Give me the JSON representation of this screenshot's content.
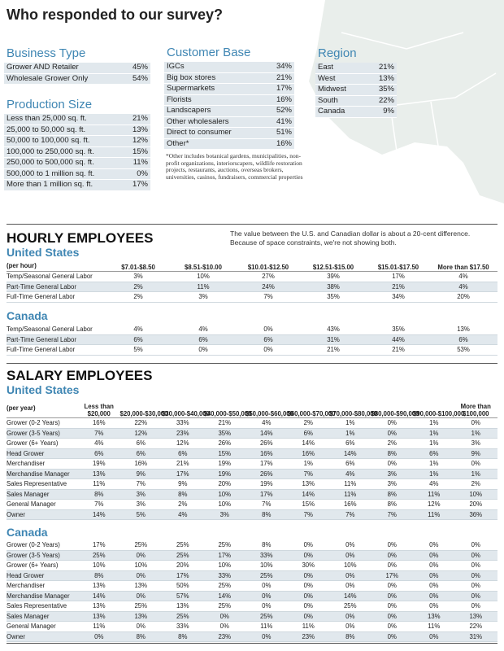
{
  "title": "Who responded to our survey?",
  "business_type": {
    "heading": "Business Type",
    "rows": [
      [
        "Grower AND Retailer",
        "45%"
      ],
      [
        "Wholesale Grower Only",
        "54%"
      ]
    ]
  },
  "production_size": {
    "heading": "Production Size",
    "rows": [
      [
        "Less than 25,000 sq. ft.",
        "21%"
      ],
      [
        "25,000 to 50,000 sq. ft.",
        "13%"
      ],
      [
        "50,000 to 100,000 sq. ft.",
        "12%"
      ],
      [
        "100,000 to 250,000 sq. ft.",
        "15%"
      ],
      [
        "250,000 to 500,000 sq. ft.",
        "11%"
      ],
      [
        "500,000 to 1 million sq. ft.",
        "0%"
      ],
      [
        "More than 1 million sq. ft.",
        "17%"
      ]
    ]
  },
  "customer_base": {
    "heading": "Customer Base",
    "rows": [
      [
        "IGCs",
        "34%"
      ],
      [
        "Big box stores",
        "21%"
      ],
      [
        "Supermarkets",
        "17%"
      ],
      [
        "Florists",
        "16%"
      ],
      [
        "Landscapers",
        "52%"
      ],
      [
        "Other wholesalers",
        "41%"
      ],
      [
        "Direct to consumer",
        "51%"
      ],
      [
        "Other*",
        "16%"
      ]
    ],
    "note": "*Other includes botanical gardens, municipalities, non-profit organizations, interiorscapers, wildlife restoration projects, restaurants, auctions, overseas brokers, universities, casinos, fundraisers, commercial properties"
  },
  "region": {
    "heading": "Region",
    "rows": [
      [
        "East",
        "21%"
      ],
      [
        "West",
        "13%"
      ],
      [
        "Midwest",
        "35%"
      ],
      [
        "South",
        "22%"
      ],
      [
        "Canada",
        "9%"
      ]
    ]
  },
  "hourly": {
    "heading": "HOURLY EMPLOYEES",
    "note": "The value between the U.S. and Canadian dollar is about a 20-cent difference. Because of space constraints, we're not showing both.",
    "us": {
      "subheading": "United States",
      "header": [
        "(per hour)",
        "$7.01-$8.50",
        "$8.51-$10.00",
        "$10.01-$12.50",
        "$12.51-$15.00",
        "$15.01-$17.50",
        "More than $17.50"
      ],
      "rows": [
        [
          "Temp/Seasonal General Labor",
          "3%",
          "10%",
          "27%",
          "39%",
          "17%",
          "4%"
        ],
        [
          "Part-Time General Labor",
          "2%",
          "11%",
          "24%",
          "38%",
          "21%",
          "4%"
        ],
        [
          "Full-Time General Labor",
          "2%",
          "3%",
          "7%",
          "35%",
          "34%",
          "20%"
        ]
      ]
    },
    "canada": {
      "subheading": "Canada",
      "rows": [
        [
          "Temp/Seasonal General Labor",
          "4%",
          "4%",
          "0%",
          "43%",
          "35%",
          "13%"
        ],
        [
          "Part-Time General Labor",
          "6%",
          "6%",
          "6%",
          "31%",
          "44%",
          "6%"
        ],
        [
          "Full-Time General Labor",
          "5%",
          "0%",
          "0%",
          "21%",
          "21%",
          "53%"
        ]
      ]
    }
  },
  "salary": {
    "heading": "SALARY EMPLOYEES",
    "us": {
      "subheading": "United States",
      "header": [
        "(per year)",
        "Less than $20,000",
        "$20,000-$30,000",
        "$30,000-$40,000",
        "$40,000-$50,000",
        "$50,000-$60,000",
        "$60,000-$70,000",
        "$70,000-$80,000",
        "$80,000-$90,000",
        "$90,000-$100,000",
        "More than $100,000"
      ],
      "rows": [
        [
          "Grower (0-2 Years)",
          "16%",
          "22%",
          "33%",
          "21%",
          "4%",
          "2%",
          "1%",
          "0%",
          "1%",
          "0%"
        ],
        [
          "Grower (3-5 Years)",
          "7%",
          "12%",
          "23%",
          "35%",
          "14%",
          "6%",
          "1%",
          "0%",
          "1%",
          "1%"
        ],
        [
          "Grower (6+ Years)",
          "4%",
          "6%",
          "12%",
          "26%",
          "26%",
          "14%",
          "6%",
          "2%",
          "1%",
          "3%"
        ],
        [
          "Head Grower",
          "6%",
          "6%",
          "6%",
          "15%",
          "16%",
          "16%",
          "14%",
          "8%",
          "6%",
          "9%"
        ],
        [
          "Merchandiser",
          "19%",
          "16%",
          "21%",
          "19%",
          "17%",
          "1%",
          "6%",
          "0%",
          "1%",
          "0%"
        ],
        [
          "Merchandise Manager",
          "13%",
          "9%",
          "17%",
          "19%",
          "26%",
          "7%",
          "4%",
          "3%",
          "1%",
          "1%"
        ],
        [
          "Sales Representative",
          "11%",
          "7%",
          "9%",
          "20%",
          "19%",
          "13%",
          "11%",
          "3%",
          "4%",
          "2%"
        ],
        [
          "Sales Manager",
          "8%",
          "3%",
          "8%",
          "10%",
          "17%",
          "14%",
          "11%",
          "8%",
          "11%",
          "10%"
        ],
        [
          "General Manager",
          "7%",
          "3%",
          "2%",
          "10%",
          "7%",
          "15%",
          "16%",
          "8%",
          "12%",
          "20%"
        ],
        [
          "Owner",
          "14%",
          "5%",
          "4%",
          "3%",
          "8%",
          "7%",
          "7%",
          "7%",
          "11%",
          "36%"
        ]
      ]
    },
    "canada": {
      "subheading": "Canada",
      "rows": [
        [
          "Grower (0-2 Years)",
          "17%",
          "25%",
          "25%",
          "25%",
          "8%",
          "0%",
          "0%",
          "0%",
          "0%",
          "0%"
        ],
        [
          "Grower (3-5 Years)",
          "25%",
          "0%",
          "25%",
          "17%",
          "33%",
          "0%",
          "0%",
          "0%",
          "0%",
          "0%"
        ],
        [
          "Grower (6+ Years)",
          "10%",
          "10%",
          "20%",
          "10%",
          "10%",
          "30%",
          "10%",
          "0%",
          "0%",
          "0%"
        ],
        [
          "Head Grower",
          "8%",
          "0%",
          "17%",
          "33%",
          "25%",
          "0%",
          "0%",
          "17%",
          "0%",
          "0%"
        ],
        [
          "Merchandiser",
          "13%",
          "13%",
          "50%",
          "25%",
          "0%",
          "0%",
          "0%",
          "0%",
          "0%",
          "0%"
        ],
        [
          "Merchandise Manager",
          "14%",
          "0%",
          "57%",
          "14%",
          "0%",
          "0%",
          "14%",
          "0%",
          "0%",
          "0%"
        ],
        [
          "Sales Representative",
          "13%",
          "25%",
          "13%",
          "25%",
          "0%",
          "0%",
          "25%",
          "0%",
          "0%",
          "0%"
        ],
        [
          "Sales Manager",
          "13%",
          "13%",
          "25%",
          "0%",
          "25%",
          "0%",
          "0%",
          "0%",
          "13%",
          "13%"
        ],
        [
          "General Manager",
          "11%",
          "0%",
          "33%",
          "0%",
          "11%",
          "11%",
          "0%",
          "0%",
          "11%",
          "22%"
        ],
        [
          "Owner",
          "0%",
          "8%",
          "8%",
          "23%",
          "0%",
          "23%",
          "8%",
          "0%",
          "0%",
          "31%"
        ]
      ]
    }
  }
}
